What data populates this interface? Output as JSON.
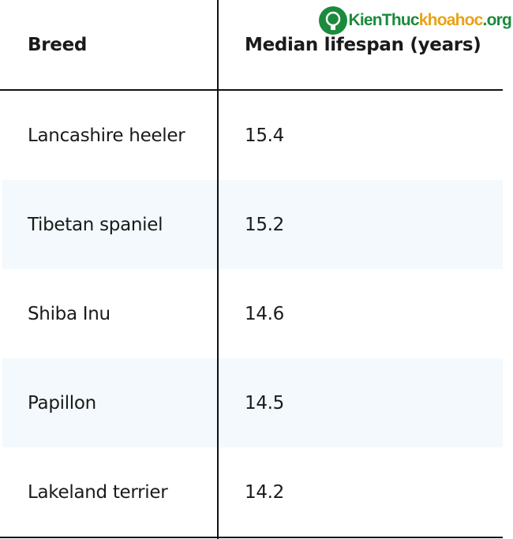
{
  "watermark": {
    "brand": "KienThuc",
    "site": "khoahoc",
    "domain": ".org"
  },
  "table": {
    "header": [
      "Breed",
      "Median lifespan (years)"
    ],
    "rows": [
      [
        "Lancashire heeler",
        15.4
      ],
      [
        "Tibetan spaniel",
        15.2
      ],
      [
        "Shiba Inu",
        14.6
      ],
      [
        "Papillon",
        14.5
      ],
      [
        "Lakeland terrier",
        14.2
      ]
    ]
  }
}
